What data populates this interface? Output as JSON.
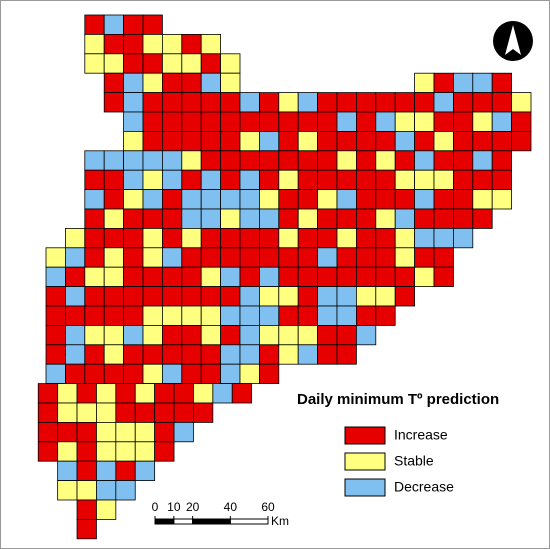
{
  "legend": {
    "title": "Daily minimum Tº prediction",
    "items": [
      {
        "label": "Increase",
        "color": "#e60000"
      },
      {
        "label": "Stable",
        "color": "#ffff80"
      },
      {
        "label": "Decrease",
        "color": "#80c0f0"
      }
    ]
  },
  "scale_bar": {
    "ticks": [
      0,
      10,
      20,
      40,
      60
    ],
    "unit": "Km"
  }
}
